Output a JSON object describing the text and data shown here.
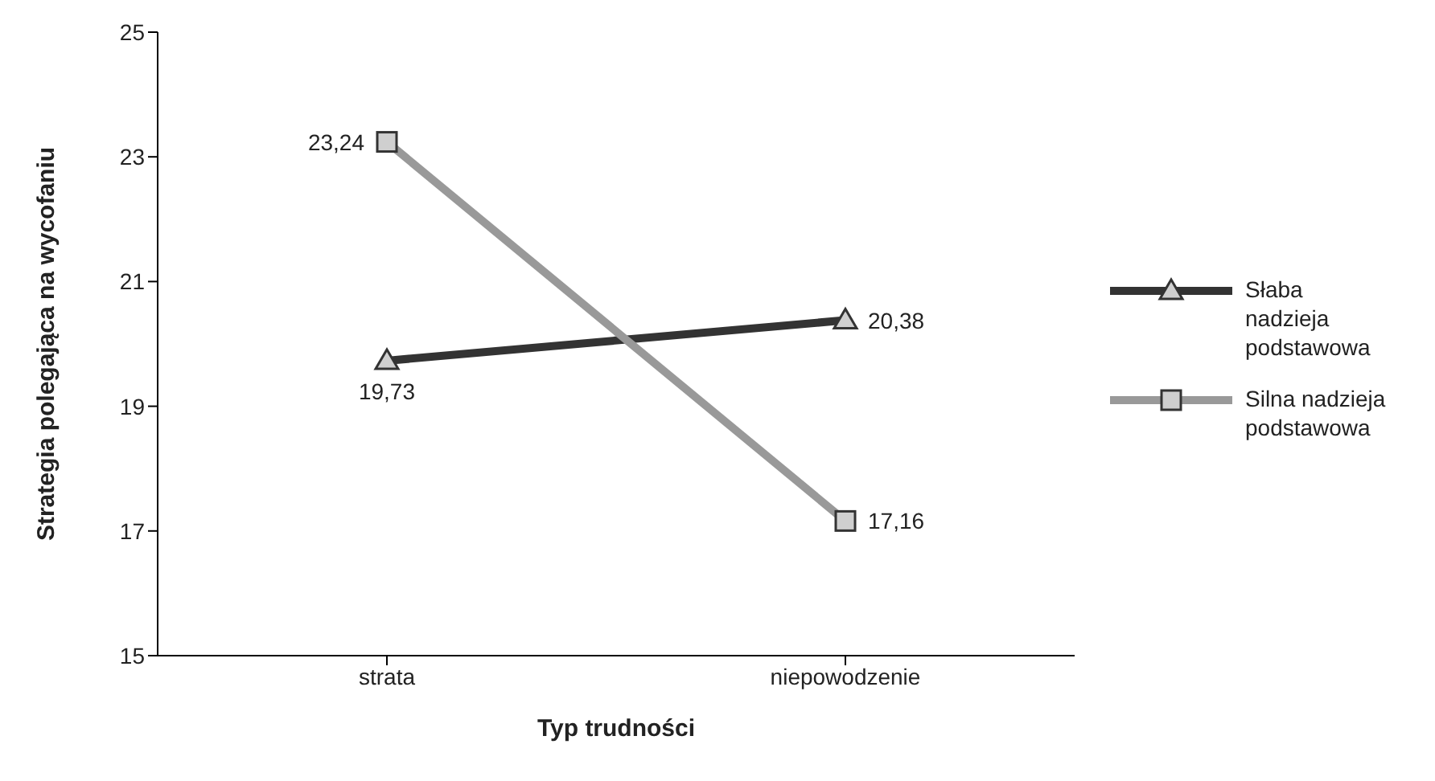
{
  "chart_data": {
    "type": "line",
    "xlabel": "Typ trudności",
    "ylabel": "Strategia polegająca na wycofaniu",
    "categories": [
      "strata",
      "niepowodzenie"
    ],
    "series": [
      {
        "name": "Słaba nadzieja podstawowa",
        "color": "#333333",
        "values": [
          19.73,
          20.38
        ],
        "value_labels": [
          "19,73",
          "20,38"
        ],
        "marker": "triangle"
      },
      {
        "name": "Silna nadzieja podstawowa",
        "color": "#999999",
        "values": [
          23.24,
          17.16
        ],
        "value_labels": [
          "23,24",
          "17,16"
        ],
        "marker": "square"
      }
    ],
    "ylim": [
      15,
      25
    ],
    "yticks": [
      15,
      17,
      19,
      21,
      23,
      25
    ],
    "grid": false,
    "legend": "right"
  }
}
